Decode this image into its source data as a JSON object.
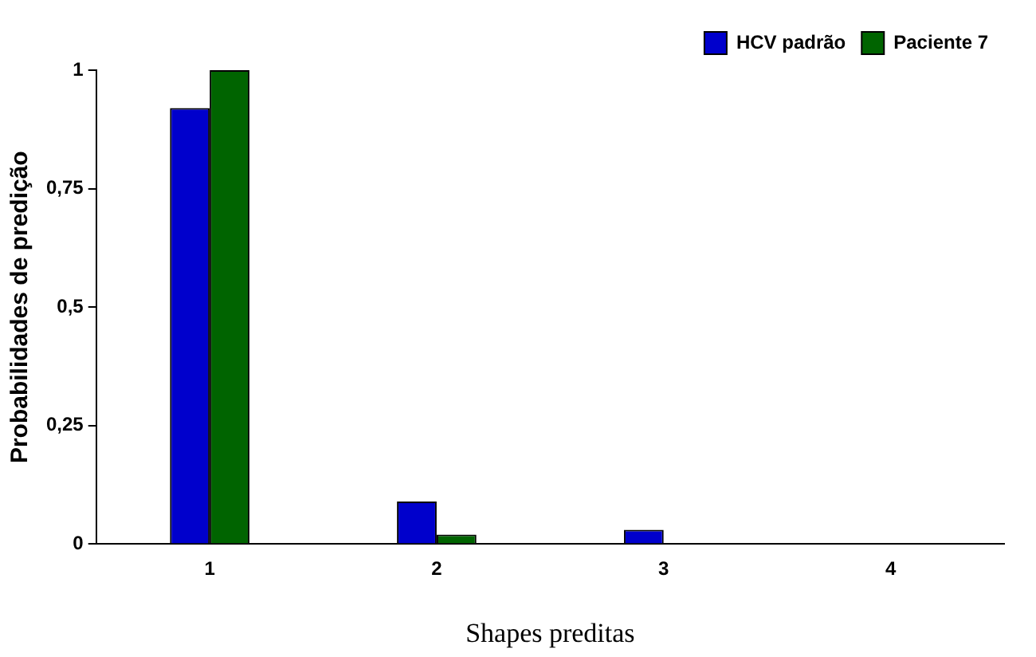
{
  "chart_data": {
    "type": "bar",
    "xlabel": "Shapes preditas",
    "ylabel": "Probabilidades de predição",
    "categories": [
      "1",
      "2",
      "3",
      "4"
    ],
    "series": [
      {
        "name": "HCV padrão",
        "color": "#0000cc",
        "values": [
          0.92,
          0.09,
          0.03,
          null
        ]
      },
      {
        "name": "Paciente 7",
        "color": "#006400",
        "values": [
          1.0,
          0.02,
          null,
          null
        ]
      }
    ],
    "ylim": [
      0,
      1
    ],
    "yticks": [
      0,
      {
        "value": 0.25,
        "label": "0,25"
      },
      {
        "value": 0.5,
        "label": "0,5"
      },
      {
        "value": 0.75,
        "label": "0,75"
      },
      1
    ],
    "grid": false,
    "legend": "top right"
  }
}
